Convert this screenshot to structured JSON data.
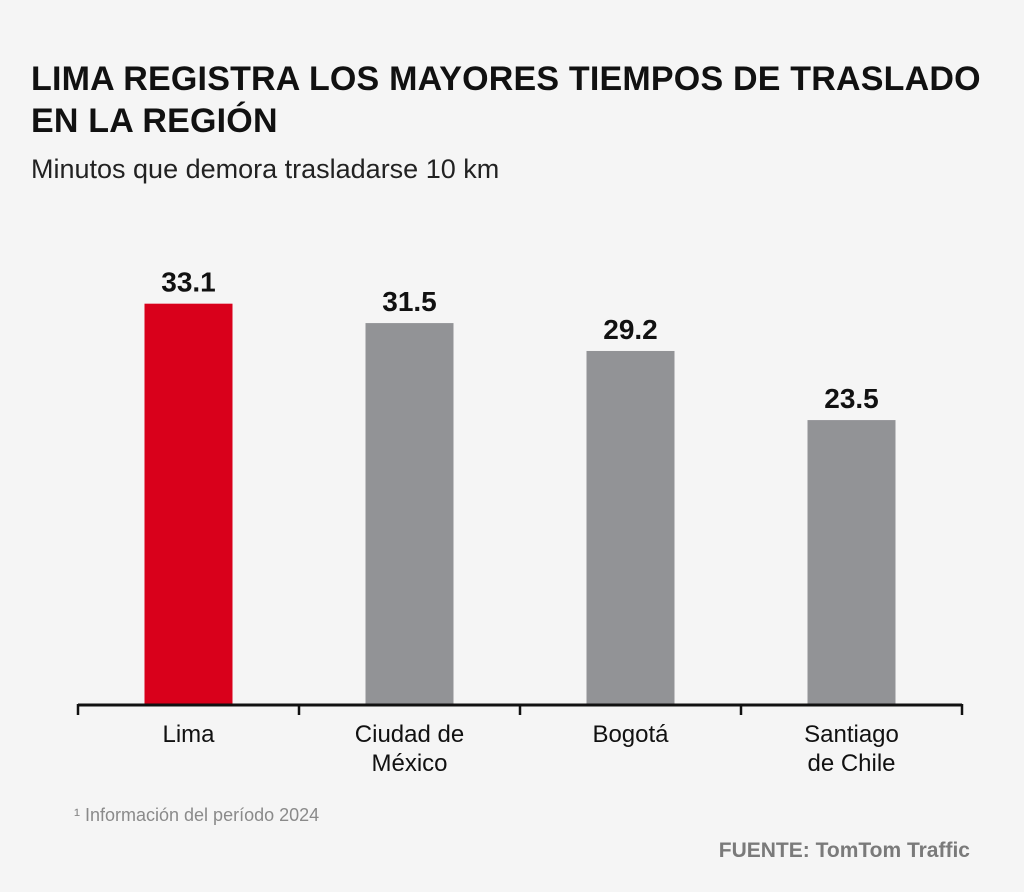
{
  "header": {
    "title": "LIMA REGISTRA LOS MAYORES TIEMPOS DE TRASLADO EN LA REGIÓN",
    "subtitle": "Minutos que demora trasladarse 10 km"
  },
  "footer": {
    "footnote": "¹ Información del período 2024",
    "source": "FUENTE: TomTom Traffic"
  },
  "colors": {
    "highlight": "#d9001b",
    "default": "#929396",
    "axis": "#111111"
  },
  "chart_data": {
    "type": "bar",
    "title": "LIMA REGISTRA LOS MAYORES TIEMPOS DE TRASLADO EN LA REGIÓN",
    "subtitle": "Minutos que demora trasladarse 10 km",
    "xlabel": "",
    "ylabel": "",
    "categories": [
      [
        "Lima"
      ],
      [
        "Ciudad de",
        "México"
      ],
      [
        "Bogotá"
      ],
      [
        "Santiago",
        "de Chile"
      ]
    ],
    "values": [
      33.1,
      31.5,
      29.2,
      23.5
    ],
    "value_labels": [
      "33.1",
      "31.5",
      "29.2",
      "23.5"
    ],
    "highlight_index": 0,
    "ylim": [
      0,
      38.6
    ],
    "grid": false,
    "legend": "none"
  }
}
